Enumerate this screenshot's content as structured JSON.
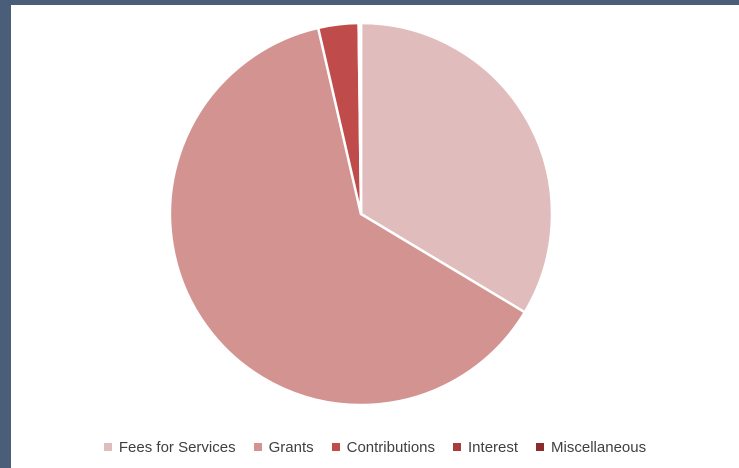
{
  "chart_data": {
    "type": "pie",
    "title": "",
    "categories": [
      "Fees for Services",
      "Grants",
      "Contributions",
      "Interest",
      "Miscellaneous"
    ],
    "values": [
      33.6,
      62.8,
      3.4,
      0.1,
      0.1
    ],
    "colors": [
      "#e0bcbc",
      "#d39391",
      "#bf4b4a",
      "#a83d3d",
      "#8b2d2d"
    ],
    "legend_position": "bottom",
    "start_angle_deg": 0,
    "direction": "clockwise"
  }
}
